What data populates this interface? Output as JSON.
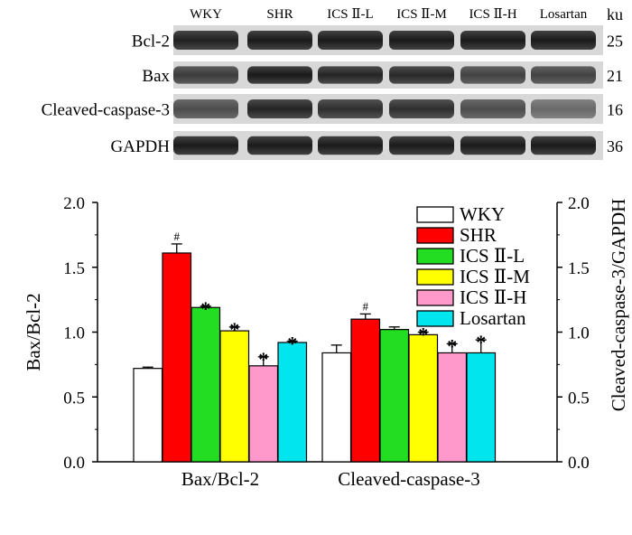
{
  "blot": {
    "unit": "ku",
    "lanes": [
      "WKY",
      "SHR",
      "ICS Ⅱ-L",
      "ICS Ⅱ-M",
      "ICS Ⅱ-H",
      "Losartan"
    ],
    "rows": [
      {
        "label": "Bcl-2",
        "kd": "25"
      },
      {
        "label": "Bax",
        "kd": "21"
      },
      {
        "label": "Cleaved-caspase-3",
        "kd": "16"
      },
      {
        "label": "GAPDH",
        "kd": "36"
      }
    ]
  },
  "chart_data": {
    "type": "bar",
    "categories": [
      "Bax/Bcl-2",
      "Cleaved-caspase-3"
    ],
    "series": [
      {
        "name": "WKY",
        "color": "#ffffff",
        "values": [
          0.72,
          0.84
        ],
        "errors": [
          0.01,
          0.06
        ],
        "marks": [
          "",
          ""
        ]
      },
      {
        "name": "SHR",
        "color": "#ff0000",
        "values": [
          1.61,
          1.1
        ],
        "errors": [
          0.07,
          0.04
        ],
        "marks": [
          "#",
          "#"
        ]
      },
      {
        "name": "ICS Ⅱ-L",
        "color": "#22dd22",
        "values": [
          1.19,
          1.02
        ],
        "errors": [
          0.01,
          0.02
        ],
        "marks": [
          "*",
          ""
        ]
      },
      {
        "name": "ICS Ⅱ-M",
        "color": "#ffff00",
        "values": [
          1.01,
          0.98
        ],
        "errors": [
          0.03,
          0.02
        ],
        "marks": [
          "*",
          "*"
        ]
      },
      {
        "name": "ICS Ⅱ-H",
        "color": "#ff99cc",
        "values": [
          0.74,
          0.84
        ],
        "errors": [
          0.07,
          0.07
        ],
        "marks": [
          "*",
          "*"
        ]
      },
      {
        "name": "Losartan",
        "color": "#00e5ee",
        "values": [
          0.92,
          0.84
        ],
        "errors": [
          0.01,
          0.1
        ],
        "marks": [
          "*",
          "*"
        ]
      }
    ],
    "ylabel": "Bax/Bcl-2",
    "ylabel_right": "Cleaved-caspase-3/GAPDH",
    "ylim": [
      0.0,
      2.0
    ],
    "yticks": [
      "0.0",
      "0.5",
      "1.0",
      "1.5",
      "2.0"
    ],
    "legend": "top-right"
  }
}
